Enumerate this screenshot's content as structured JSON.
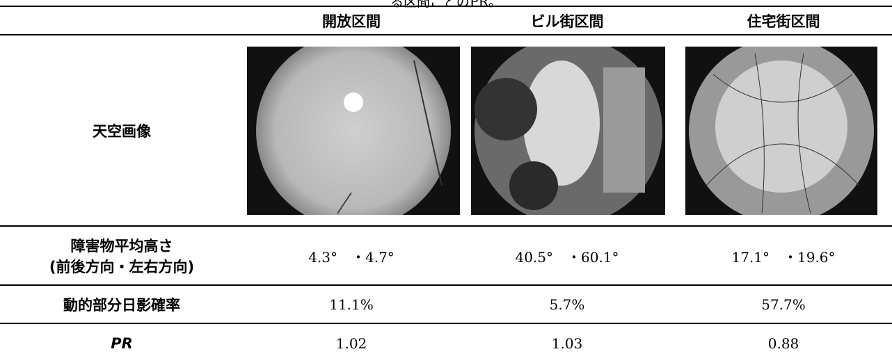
{
  "caption": "る区間ごとのPR。",
  "table": {
    "header": [
      "開放区間",
      "ビル街区間",
      "住宅街区間"
    ],
    "rows": [
      {
        "label": "天空画像"
      },
      {
        "label": [
          "障害物平均高さ",
          "(前後方向・左右方向)"
        ],
        "cells": [
          "4.3°　・4.7°",
          "40.5°　・60.1°",
          "17.1°　・19.6°"
        ]
      },
      {
        "label": "動的部分日影確率",
        "cells": [
          "11.1%",
          "5.7%",
          "57.7%"
        ]
      },
      {
        "label": "PR",
        "cells": [
          "1.02",
          "1.03",
          "0.88"
        ]
      }
    ]
  }
}
